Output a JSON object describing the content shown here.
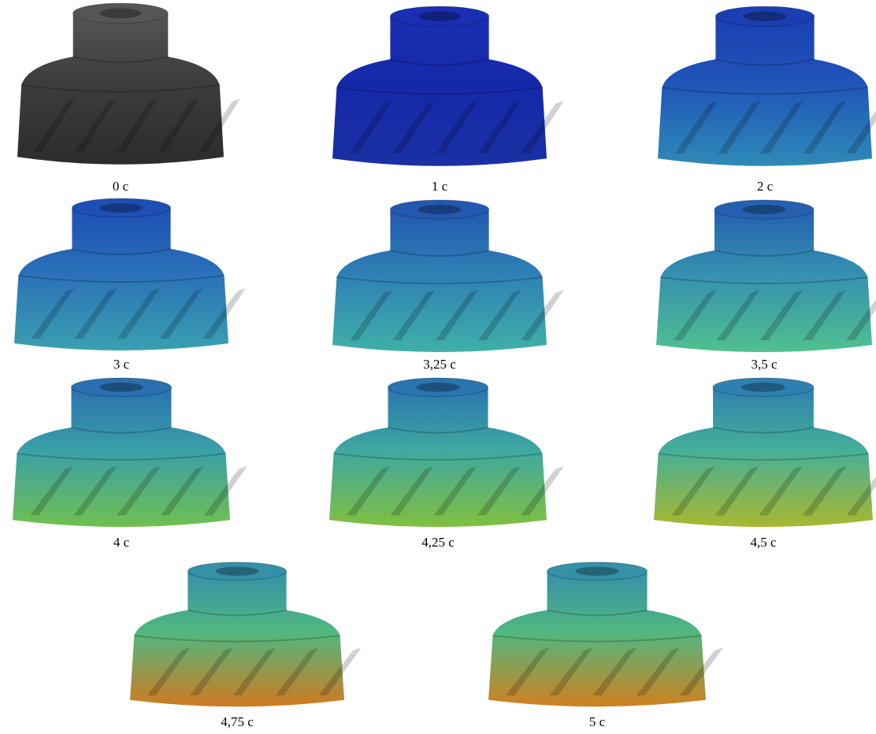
{
  "panels": [
    {
      "label": "0 с"
    },
    {
      "label": "1 с"
    },
    {
      "label": "2 с"
    },
    {
      "label": "3 с"
    },
    {
      "label": "3,25 с"
    },
    {
      "label": "3,5 с"
    },
    {
      "label": "4 с"
    },
    {
      "label": "4,25 с"
    },
    {
      "label": "4,5 с"
    },
    {
      "label": "4,75 с"
    },
    {
      "label": "5 с"
    }
  ]
}
